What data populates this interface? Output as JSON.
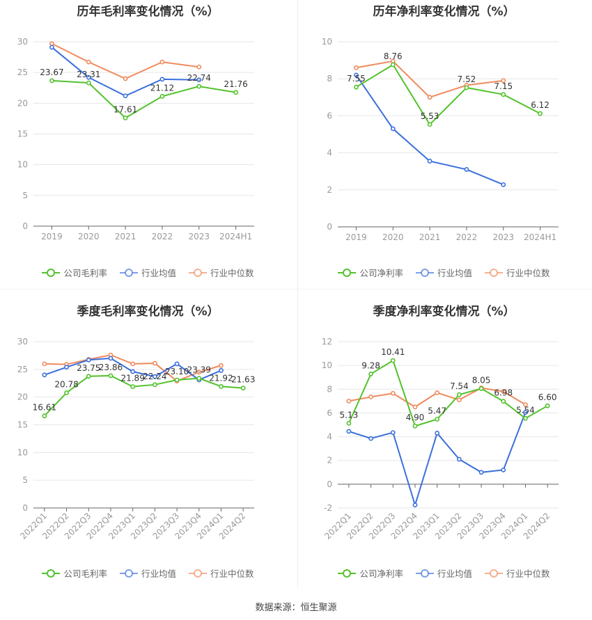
{
  "colors": {
    "company": "#52c22b",
    "avg": "#3a6fdc",
    "median": "#f08a5d"
  },
  "footer": "数据来源：恒生聚源",
  "chart_data": [
    {
      "type": "line",
      "title": "历年毛利率变化情况（%）",
      "categories": [
        "2019",
        "2020",
        "2021",
        "2022",
        "2023",
        "2024H1"
      ],
      "ylim": [
        0,
        30
      ],
      "yticks": [
        0,
        5,
        10,
        15,
        20,
        25,
        30
      ],
      "legend": "bottom",
      "grid": true,
      "series": [
        {
          "name": "公司毛利率",
          "key": "company",
          "labeled": true,
          "values": [
            23.67,
            23.31,
            17.61,
            21.12,
            22.74,
            21.76
          ]
        },
        {
          "name": "行业均值",
          "key": "avg",
          "values": [
            29.1,
            24.2,
            21.2,
            23.9,
            23.8,
            null
          ]
        },
        {
          "name": "行业中位数",
          "key": "median",
          "values": [
            29.7,
            26.7,
            24.0,
            26.7,
            25.9,
            null
          ]
        }
      ]
    },
    {
      "type": "line",
      "title": "历年净利率变化情况（%）",
      "categories": [
        "2019",
        "2020",
        "2021",
        "2022",
        "2023",
        "2024H1"
      ],
      "ylim": [
        0,
        10
      ],
      "yticks": [
        0,
        2,
        4,
        6,
        8,
        10
      ],
      "legend": "bottom",
      "grid": true,
      "series": [
        {
          "name": "公司净利率",
          "key": "company",
          "labeled": true,
          "values": [
            7.55,
            8.76,
            5.53,
            7.52,
            7.15,
            6.12
          ]
        },
        {
          "name": "行业均值",
          "key": "avg",
          "values": [
            8.2,
            5.3,
            3.55,
            3.1,
            2.28,
            null
          ]
        },
        {
          "name": "行业中位数",
          "key": "median",
          "values": [
            8.6,
            8.95,
            7.0,
            7.65,
            7.9,
            null
          ]
        }
      ]
    },
    {
      "type": "line",
      "title": "季度毛利率变化情况（%）",
      "categories": [
        "2022Q1",
        "2022Q2",
        "2022Q3",
        "2022Q4",
        "2023Q1",
        "2023Q2",
        "2023Q3",
        "2023Q4",
        "2024Q1",
        "2024Q2"
      ],
      "ylim": [
        0,
        30
      ],
      "yticks": [
        0,
        5,
        10,
        15,
        20,
        25,
        30
      ],
      "legend": "bottom",
      "grid": true,
      "series": [
        {
          "name": "公司毛利率",
          "key": "company",
          "labeled": true,
          "values": [
            16.61,
            20.78,
            23.75,
            23.86,
            21.89,
            22.24,
            23.1,
            23.39,
            21.92,
            21.63
          ]
        },
        {
          "name": "行业均值",
          "key": "avg",
          "values": [
            24.0,
            25.4,
            26.7,
            27.0,
            24.6,
            23.7,
            26.0,
            23.1,
            24.8,
            null
          ]
        },
        {
          "name": "行业中位数",
          "key": "median",
          "values": [
            26.0,
            25.9,
            26.8,
            27.6,
            26.0,
            26.1,
            22.9,
            24.5,
            25.7,
            null
          ]
        }
      ]
    },
    {
      "type": "line",
      "title": "季度净利率变化情况（%）",
      "categories": [
        "2022Q1",
        "2022Q2",
        "2022Q3",
        "2022Q4",
        "2023Q1",
        "2023Q2",
        "2023Q3",
        "2023Q4",
        "2024Q1",
        "2024Q2"
      ],
      "ylim": [
        -2,
        12
      ],
      "yticks": [
        -2,
        0,
        2,
        4,
        6,
        8,
        10,
        12
      ],
      "legend": "bottom",
      "grid": true,
      "series": [
        {
          "name": "公司净利率",
          "key": "company",
          "labeled": true,
          "values": [
            5.13,
            9.28,
            10.41,
            4.9,
            5.47,
            7.54,
            8.05,
            6.98,
            5.54,
            6.6
          ]
        },
        {
          "name": "行业均值",
          "key": "avg",
          "values": [
            4.45,
            3.85,
            4.35,
            -1.75,
            4.3,
            2.1,
            1.0,
            1.2,
            6.05,
            null
          ]
        },
        {
          "name": "行业中位数",
          "key": "median",
          "values": [
            7.0,
            7.35,
            7.65,
            6.5,
            7.7,
            7.1,
            8.1,
            7.8,
            6.7,
            null
          ]
        }
      ]
    }
  ]
}
